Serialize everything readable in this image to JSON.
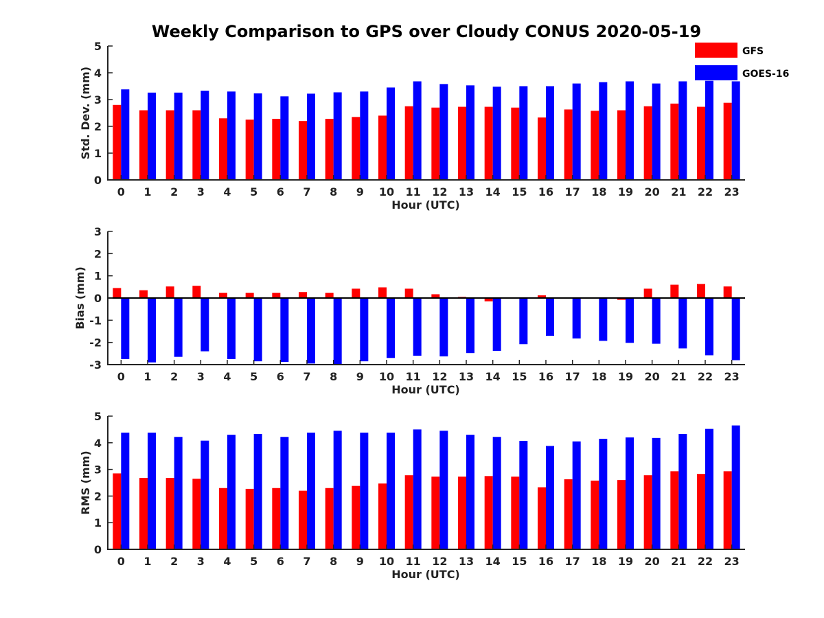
{
  "title": "Weekly Comparison to GPS over Cloudy CONUS 2020-05-19",
  "legend": {
    "placement": "top-right",
    "entries": [
      {
        "name": "GFS",
        "color": "#ff0000"
      },
      {
        "name": "GOES-16",
        "color": "#0000ff"
      }
    ]
  },
  "chart_data": [
    {
      "type": "bar",
      "xlabel": "Hour (UTC)",
      "ylabel": "Std. Dev. (mm)",
      "ylim": [
        0,
        5
      ],
      "yticks": [
        0,
        1,
        2,
        3,
        4,
        5
      ],
      "categories": [
        "0",
        "1",
        "2",
        "3",
        "4",
        "5",
        "6",
        "7",
        "8",
        "9",
        "10",
        "11",
        "12",
        "13",
        "14",
        "15",
        "16",
        "17",
        "18",
        "19",
        "20",
        "21",
        "22",
        "23"
      ],
      "series": [
        {
          "name": "GFS",
          "color": "#ff0000",
          "values": [
            2.8,
            2.6,
            2.6,
            2.6,
            2.3,
            2.25,
            2.28,
            2.2,
            2.28,
            2.35,
            2.4,
            2.75,
            2.7,
            2.73,
            2.73,
            2.7,
            2.33,
            2.63,
            2.58,
            2.6,
            2.75,
            2.85,
            2.73,
            2.88
          ]
        },
        {
          "name": "GOES-16",
          "color": "#0000ff",
          "values": [
            3.38,
            3.26,
            3.26,
            3.33,
            3.3,
            3.23,
            3.12,
            3.22,
            3.27,
            3.3,
            3.45,
            3.68,
            3.58,
            3.53,
            3.48,
            3.5,
            3.5,
            3.6,
            3.65,
            3.68,
            3.6,
            3.68,
            3.7,
            3.68
          ]
        }
      ]
    },
    {
      "type": "bar",
      "xlabel": "Hour (UTC)",
      "ylabel": "Bias (mm)",
      "ylim": [
        -3,
        3
      ],
      "yticks": [
        -3,
        -2,
        -1,
        0,
        1,
        2,
        3
      ],
      "categories": [
        "0",
        "1",
        "2",
        "3",
        "4",
        "5",
        "6",
        "7",
        "8",
        "9",
        "10",
        "11",
        "12",
        "13",
        "14",
        "15",
        "16",
        "17",
        "18",
        "19",
        "20",
        "21",
        "22",
        "23"
      ],
      "series": [
        {
          "name": "GFS",
          "color": "#ff0000",
          "values": [
            0.45,
            0.35,
            0.52,
            0.55,
            0.23,
            0.23,
            0.23,
            0.27,
            0.23,
            0.42,
            0.48,
            0.42,
            0.17,
            0.05,
            -0.15,
            -0.03,
            0.12,
            -0.03,
            0.0,
            -0.08,
            0.42,
            0.6,
            0.63,
            0.52
          ]
        },
        {
          "name": "GOES-16",
          "color": "#0000ff",
          "values": [
            -2.75,
            -2.9,
            -2.65,
            -2.4,
            -2.75,
            -2.85,
            -2.88,
            -2.95,
            -3.0,
            -2.85,
            -2.7,
            -2.6,
            -2.63,
            -2.48,
            -2.38,
            -2.08,
            -1.7,
            -1.82,
            -1.93,
            -2.02,
            -2.06,
            -2.27,
            -2.58,
            -2.8
          ]
        }
      ]
    },
    {
      "type": "bar",
      "xlabel": "Hour (UTC)",
      "ylabel": "RMS (mm)",
      "ylim": [
        0,
        5
      ],
      "yticks": [
        0,
        1,
        2,
        3,
        4,
        5
      ],
      "categories": [
        "0",
        "1",
        "2",
        "3",
        "4",
        "5",
        "6",
        "7",
        "8",
        "9",
        "10",
        "11",
        "12",
        "13",
        "14",
        "15",
        "16",
        "17",
        "18",
        "19",
        "20",
        "21",
        "22",
        "23"
      ],
      "series": [
        {
          "name": "GFS",
          "color": "#ff0000",
          "values": [
            2.85,
            2.68,
            2.68,
            2.65,
            2.3,
            2.27,
            2.3,
            2.2,
            2.3,
            2.38,
            2.47,
            2.78,
            2.73,
            2.73,
            2.75,
            2.73,
            2.33,
            2.63,
            2.58,
            2.6,
            2.78,
            2.93,
            2.83,
            2.93
          ]
        },
        {
          "name": "GOES-16",
          "color": "#0000ff",
          "values": [
            4.38,
            4.38,
            4.22,
            4.08,
            4.3,
            4.33,
            4.22,
            4.38,
            4.45,
            4.38,
            4.38,
            4.5,
            4.45,
            4.3,
            4.22,
            4.07,
            3.88,
            4.05,
            4.15,
            4.2,
            4.18,
            4.33,
            4.52,
            4.65
          ]
        }
      ]
    }
  ]
}
